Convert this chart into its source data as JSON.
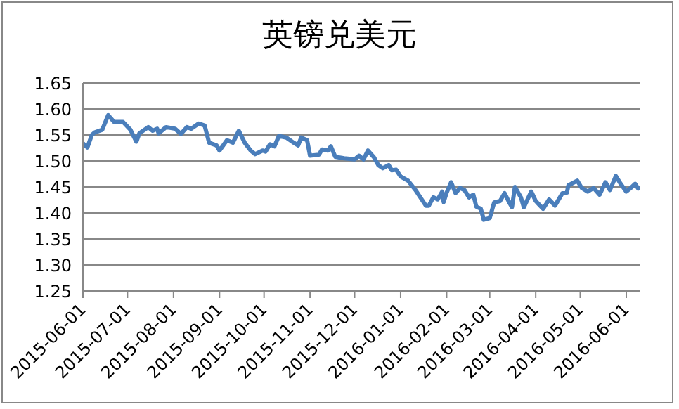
{
  "chart_data": {
    "type": "line",
    "title": "英镑兑美元",
    "x": [
      "2015-06-01",
      "2015-06-04",
      "2015-06-07",
      "2015-06-09",
      "2015-06-14",
      "2015-06-18",
      "2015-06-22",
      "2015-06-28",
      "2015-07-03",
      "2015-07-07",
      "2015-07-09",
      "2015-07-15",
      "2015-07-18",
      "2015-07-21",
      "2015-07-22",
      "2015-07-27",
      "2015-08-02",
      "2015-08-06",
      "2015-08-10",
      "2015-08-13",
      "2015-08-18",
      "2015-08-22",
      "2015-08-25",
      "2015-08-30",
      "2015-09-01",
      "2015-09-06",
      "2015-09-10",
      "2015-09-14",
      "2015-09-18",
      "2015-09-22",
      "2015-09-25",
      "2015-09-30",
      "2015-10-02",
      "2015-10-05",
      "2015-10-08",
      "2015-10-11",
      "2015-10-16",
      "2015-10-21",
      "2015-10-24",
      "2015-10-26",
      "2015-10-30",
      "2015-11-01",
      "2015-11-07",
      "2015-11-09",
      "2015-11-13",
      "2015-11-15",
      "2015-11-18",
      "2015-11-24",
      "2015-12-01",
      "2015-12-04",
      "2015-12-07",
      "2015-12-10",
      "2015-12-14",
      "2015-12-17",
      "2015-12-20",
      "2015-12-24",
      "2015-12-26",
      "2015-12-29",
      "2016-01-01",
      "2016-01-06",
      "2016-01-11",
      "2016-01-18",
      "2016-01-20",
      "2016-01-23",
      "2016-01-26",
      "2016-01-29",
      "2016-01-30",
      "2016-02-01",
      "2016-02-04",
      "2016-02-07",
      "2016-02-10",
      "2016-02-13",
      "2016-02-16",
      "2016-02-19",
      "2016-02-21",
      "2016-02-24",
      "2016-02-26",
      "2016-03-01",
      "2016-03-04",
      "2016-03-08",
      "2016-03-11",
      "2016-03-14",
      "2016-03-16",
      "2016-03-18",
      "2016-03-22",
      "2016-03-24",
      "2016-03-29",
      "2016-04-01",
      "2016-04-06",
      "2016-04-10",
      "2016-04-14",
      "2016-04-19",
      "2016-04-22",
      "2016-04-23",
      "2016-04-29",
      "2016-05-02",
      "2016-05-06",
      "2016-05-10",
      "2016-05-14",
      "2016-05-18",
      "2016-05-21",
      "2016-05-25",
      "2016-05-28",
      "2016-06-01",
      "2016-06-04",
      "2016-06-07",
      "2016-06-09"
    ],
    "series": [
      {
        "color": "#4a7ebb",
        "values": [
          1.534,
          1.526,
          1.55,
          1.555,
          1.56,
          1.588,
          1.575,
          1.575,
          1.56,
          1.537,
          1.553,
          1.565,
          1.558,
          1.562,
          1.553,
          1.565,
          1.562,
          1.552,
          1.565,
          1.562,
          1.572,
          1.568,
          1.535,
          1.53,
          1.52,
          1.54,
          1.535,
          1.558,
          1.535,
          1.52,
          1.513,
          1.52,
          1.518,
          1.532,
          1.528,
          1.548,
          1.545,
          1.535,
          1.53,
          1.545,
          1.54,
          1.51,
          1.512,
          1.522,
          1.52,
          1.528,
          1.508,
          1.505,
          1.503,
          1.51,
          1.503,
          1.52,
          1.507,
          1.492,
          1.486,
          1.492,
          1.482,
          1.483,
          1.47,
          1.462,
          1.444,
          1.414,
          1.414,
          1.43,
          1.426,
          1.441,
          1.421,
          1.439,
          1.459,
          1.438,
          1.448,
          1.444,
          1.43,
          1.435,
          1.412,
          1.408,
          1.387,
          1.39,
          1.42,
          1.423,
          1.438,
          1.421,
          1.411,
          1.45,
          1.43,
          1.411,
          1.441,
          1.423,
          1.408,
          1.426,
          1.414,
          1.438,
          1.439,
          1.453,
          1.462,
          1.448,
          1.441,
          1.448,
          1.435,
          1.459,
          1.444,
          1.471,
          1.457,
          1.441,
          1.448,
          1.456,
          1.447
        ]
      }
    ],
    "xlim": [
      "2015-06-01",
      "2016-06-10"
    ],
    "xticks": [
      "2015-06-01",
      "2015-07-01",
      "2015-08-01",
      "2015-09-01",
      "2015-10-01",
      "2015-11-01",
      "2015-12-01",
      "2016-01-01",
      "2016-02-01",
      "2016-03-01",
      "2016-04-01",
      "2016-05-01",
      "2016-06-01"
    ],
    "ylim": [
      1.25,
      1.65
    ],
    "yticks": [
      1.25,
      {
        "value": 1.3,
        "label": "1.30"
      },
      1.35,
      {
        "value": 1.4,
        "label": "1.40"
      },
      1.45,
      {
        "value": 1.5,
        "label": "1.50"
      },
      1.55,
      {
        "value": 1.6,
        "label": "1.60"
      },
      1.65
    ],
    "grid": "y",
    "legend": false,
    "marker": "none",
    "line_style": "solid"
  }
}
